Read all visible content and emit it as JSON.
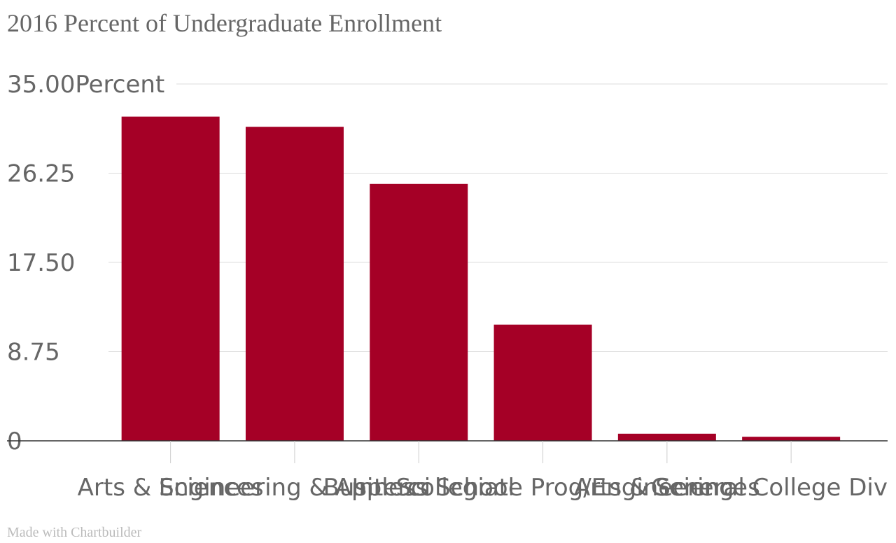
{
  "chart_data": {
    "type": "bar",
    "title": "2016 Percent of Undergraduate Enrollment",
    "categories": [
      "Arts & Sciences",
      "Engineering & Appl Sci",
      "Business School",
      "Intercollegiate Prog/Engineering",
      "Arts & Sciences",
      "General College Div"
    ],
    "values": [
      31.8,
      30.8,
      25.2,
      11.4,
      0.7,
      0.4
    ],
    "ylabel": "",
    "xlabel": "",
    "ylim": [
      0,
      35
    ],
    "y_ticks": [
      "0",
      "8.75",
      "17.50",
      "26.25",
      "35.00"
    ],
    "y_unit": "Percent",
    "grid": true,
    "bar_color": "#a50026"
  },
  "footer": {
    "credit": "Made with Chartbuilder"
  }
}
